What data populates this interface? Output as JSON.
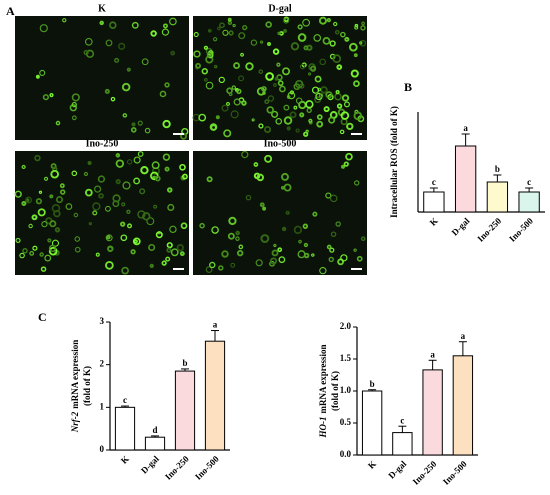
{
  "figure": {
    "panels": [
      "A",
      "B",
      "C"
    ],
    "images": [
      "K",
      "D-gal",
      "Ino-250",
      "Ino-500"
    ]
  },
  "chart_data": [
    {
      "type": "bar",
      "ylabel": "Intracellular ROS (fold of K)",
      "categories": [
        "K",
        "D-gal",
        "Ino-250",
        "Ino-500"
      ],
      "values": [
        1.0,
        3.3,
        1.5,
        1.0
      ],
      "errors": [
        0.2,
        0.6,
        0.35,
        0.2
      ],
      "significance": [
        "c",
        "a",
        "b",
        "c"
      ],
      "colors": [
        "#ffffff",
        "#fcd9dc",
        "#fffacd",
        "#d9f5ec"
      ],
      "ylim": [
        0,
        5
      ]
    },
    {
      "type": "bar",
      "ylabel_gene": "Nrf-2",
      "ylabel_rest": "mRNA expression",
      "ylabel_unit": "(fold of K)",
      "categories": [
        "K",
        "D-gal",
        "Ino-250",
        "Ino-500"
      ],
      "values": [
        1.0,
        0.3,
        1.85,
        2.55
      ],
      "errors": [
        0.03,
        0.03,
        0.05,
        0.25
      ],
      "significance": [
        "c",
        "d",
        "b",
        "a"
      ],
      "colors": [
        "#ffffff",
        "#ffffff",
        "#fadadd",
        "#fde0c0"
      ],
      "ylim": [
        0,
        3
      ],
      "yticks": [
        0,
        1,
        2,
        3
      ]
    },
    {
      "type": "bar",
      "ylabel_gene": "HO-1",
      "ylabel_rest": "mRNA expression",
      "ylabel_unit": "(fold of K)",
      "categories": [
        "K",
        "D-gal",
        "Ino-250",
        "Ino-500"
      ],
      "values": [
        1.0,
        0.35,
        1.33,
        1.55
      ],
      "errors": [
        0.02,
        0.1,
        0.15,
        0.22
      ],
      "significance": [
        "b",
        "c",
        "a",
        "a"
      ],
      "colors": [
        "#ffffff",
        "#ffffff",
        "#fadadd",
        "#fde0c0"
      ],
      "ylim": [
        0,
        2
      ],
      "yticks": [
        {
          "value": 0,
          "label": "0.0"
        },
        0.5,
        {
          "value": 1,
          "label": "1.0"
        },
        1.5,
        {
          "value": 2,
          "label": "2.0"
        }
      ]
    }
  ]
}
